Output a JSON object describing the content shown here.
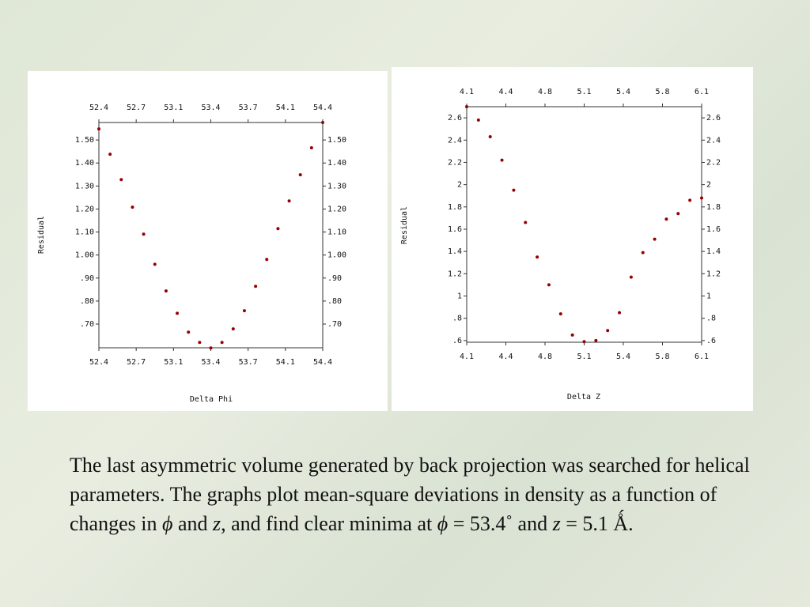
{
  "chart_data": [
    {
      "type": "line",
      "xlabel": "Delta Phi",
      "ylabel": "Residual",
      "color": "#777777",
      "marker_color": "#990000",
      "x": [
        52.4,
        52.5,
        52.6,
        52.7,
        52.8,
        52.9,
        53.0,
        53.1,
        53.2,
        53.3,
        53.4,
        53.5,
        53.6,
        53.7,
        53.8,
        53.9,
        54.0,
        54.1,
        54.2,
        54.3,
        54.4
      ],
      "values": [
        1.548,
        1.438,
        1.328,
        1.208,
        1.091,
        0.96,
        0.844,
        0.747,
        0.665,
        0.62,
        0.596,
        0.62,
        0.679,
        0.758,
        0.864,
        0.981,
        1.115,
        1.235,
        1.349,
        1.466,
        1.576
      ],
      "xlim": [
        52.4,
        54.4
      ],
      "xticks": [
        52.4,
        {
          "value": 52.7333,
          "label": "52.7"
        },
        {
          "value": 53.0667,
          "label": "53.1"
        },
        53.4,
        {
          "value": 53.7333,
          "label": "53.7"
        },
        {
          "value": 54.0667,
          "label": "54.1"
        },
        54.4
      ],
      "ylim": [
        0.597,
        1.576
      ],
      "yticks": [
        {
          "value": 0.7,
          "label": ".70"
        },
        {
          "value": 0.8,
          "label": ".80"
        },
        {
          "value": 0.9,
          "label": ".90"
        },
        {
          "value": 1.0,
          "label": "1.00"
        },
        {
          "value": 1.1,
          "label": "1.10"
        },
        {
          "value": 1.2,
          "label": "1.20"
        },
        {
          "value": 1.3,
          "label": "1.30"
        },
        {
          "value": 1.4,
          "label": "1.40"
        },
        {
          "value": 1.5,
          "label": "1.50"
        }
      ]
    },
    {
      "type": "line",
      "xlabel": "Delta Z",
      "ylabel": "Residual",
      "color": "#777777",
      "marker_color": "#990000",
      "x": [
        4.1,
        4.2,
        4.3,
        4.4,
        4.5,
        4.6,
        4.7,
        4.8,
        4.9,
        5.0,
        5.1,
        5.2,
        5.3,
        5.4,
        5.5,
        5.6,
        5.7,
        5.8,
        5.9,
        6.0,
        6.1
      ],
      "values": [
        2.7,
        2.58,
        2.43,
        2.22,
        1.95,
        1.66,
        1.35,
        1.1,
        0.84,
        0.65,
        0.59,
        0.6,
        0.69,
        0.85,
        1.17,
        1.39,
        1.51,
        1.69,
        1.74,
        1.86,
        1.88
      ],
      "xlim": [
        4.1,
        6.1
      ],
      "xticks": [
        4.1,
        {
          "value": 4.4333,
          "label": "4.4"
        },
        {
          "value": 4.7667,
          "label": "4.8"
        },
        5.1,
        {
          "value": 5.4333,
          "label": "5.4"
        },
        {
          "value": 5.7667,
          "label": "5.8"
        },
        6.1
      ],
      "ylim": [
        0.585,
        2.7
      ],
      "yticks": [
        {
          "value": 0.6,
          "label": ".6"
        },
        {
          "value": 0.8,
          "label": ".8"
        },
        1,
        1.2,
        1.4,
        1.6,
        1.8,
        2,
        2.2,
        2.4,
        2.6
      ]
    }
  ],
  "caption": [
    "The last asymmetric volume  generated by back projection was searched for helical parameters.  The  graphs plot mean-square deviations in density as a function of changes in ",
    "ϕ",
    " and ",
    "z",
    ", and find clear minima at ",
    "ϕ",
    " = 53.4˚ and ",
    "z",
    " = 5.1 Ǻ."
  ]
}
